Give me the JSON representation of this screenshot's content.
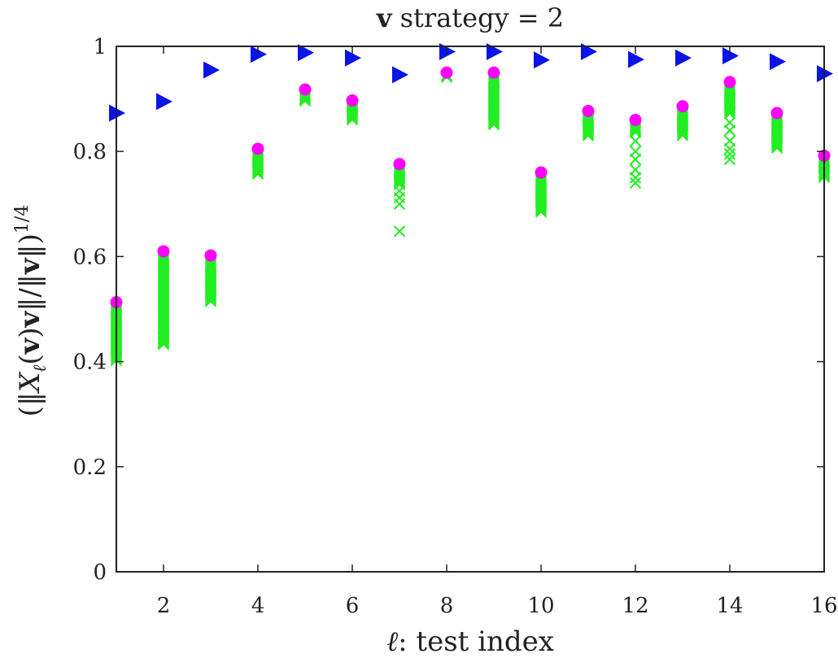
{
  "chart_data": {
    "type": "scatter",
    "title": "v strategy = 2",
    "title_parts": {
      "bold": "v",
      "rest": " strategy = 2"
    },
    "xlabel": "ℓ: test index",
    "xlabel_parts": {
      "italic": "ℓ",
      "rest": ": test index"
    },
    "ylabel": "(‖X_ℓ(v)v‖/‖v‖)^{1/4}",
    "ylabel_parts": {
      "open": "(‖",
      "X": "X",
      "sub": "ℓ",
      "mid1": "(",
      "v1": "v",
      "mid2": ")",
      "v2": "v",
      "mid3": "‖/‖",
      "v3": "v",
      "close": "‖)",
      "sup": "1/4"
    },
    "xlim": [
      1,
      16
    ],
    "ylim": [
      0,
      1
    ],
    "xticks": [
      2,
      4,
      6,
      8,
      10,
      12,
      14,
      16
    ],
    "yticks": [
      0,
      0.2,
      0.4,
      0.6,
      0.8,
      1
    ],
    "ytick_labels": [
      "0",
      "0.2",
      "0.4",
      "0.6",
      "0.8",
      "1"
    ],
    "grid": false,
    "legend": "none",
    "colors": {
      "triangle": "#0a14e6",
      "circle": "#ff00ff",
      "cross": "#22ee22",
      "axis": "#222222"
    },
    "series": [
      {
        "marker": "triangle-right",
        "color": "#0a14e6",
        "x": [
          1,
          2,
          3,
          4,
          5,
          6,
          7,
          8,
          9,
          10,
          11,
          12,
          13,
          14,
          15,
          16
        ],
        "y": [
          0.873,
          0.895,
          0.955,
          0.985,
          0.988,
          0.978,
          0.946,
          0.99,
          0.99,
          0.974,
          0.99,
          0.975,
          0.978,
          0.982,
          0.971,
          0.948
        ]
      },
      {
        "marker": "circle",
        "color": "#ff00ff",
        "x": [
          1,
          2,
          3,
          4,
          5,
          6,
          7,
          8,
          9,
          10,
          11,
          12,
          13,
          14,
          15,
          16
        ],
        "y": [
          0.513,
          0.61,
          0.602,
          0.805,
          0.918,
          0.897,
          0.776,
          0.95,
          0.95,
          0.76,
          0.877,
          0.86,
          0.886,
          0.932,
          0.873,
          0.792
        ]
      },
      {
        "marker": "cross",
        "color": "#22ee22",
        "groups": [
          {
            "x": 1,
            "ymin": 0.4,
            "ymax": 0.505,
            "outliers": []
          },
          {
            "x": 2,
            "ymin": 0.43,
            "ymax": 0.6,
            "outliers": [
              0.445,
              0.435
            ]
          },
          {
            "x": 3,
            "ymin": 0.515,
            "ymax": 0.59,
            "outliers": [
              0.528
            ]
          },
          {
            "x": 4,
            "ymin": 0.755,
            "ymax": 0.795,
            "outliers": []
          },
          {
            "x": 5,
            "ymin": 0.895,
            "ymax": 0.91,
            "outliers": []
          },
          {
            "x": 6,
            "ymin": 0.86,
            "ymax": 0.888,
            "outliers": []
          },
          {
            "x": 7,
            "ymin": 0.735,
            "ymax": 0.768,
            "outliers": [
              0.725,
              0.712,
              0.7,
              0.648
            ]
          },
          {
            "x": 8,
            "ymin": 0.94,
            "ymax": 0.945,
            "outliers": []
          },
          {
            "x": 9,
            "ymin": 0.85,
            "ymax": 0.94,
            "outliers": []
          },
          {
            "x": 10,
            "ymin": 0.685,
            "ymax": 0.75,
            "outliers": []
          },
          {
            "x": 11,
            "ymin": 0.83,
            "ymax": 0.868,
            "outliers": []
          },
          {
            "x": 12,
            "ymin": 0.835,
            "ymax": 0.85,
            "outliers": [
              0.82,
              0.8,
              0.785,
              0.765,
              0.75,
              0.74
            ]
          },
          {
            "x": 13,
            "ymin": 0.83,
            "ymax": 0.875,
            "outliers": []
          },
          {
            "x": 14,
            "ymin": 0.87,
            "ymax": 0.92,
            "outliers": [
              0.855,
              0.84,
              0.82,
              0.805,
              0.795,
              0.785
            ]
          },
          {
            "x": 15,
            "ymin": 0.805,
            "ymax": 0.865,
            "outliers": []
          },
          {
            "x": 16,
            "ymin": 0.748,
            "ymax": 0.782,
            "outliers": []
          }
        ]
      }
    ]
  }
}
